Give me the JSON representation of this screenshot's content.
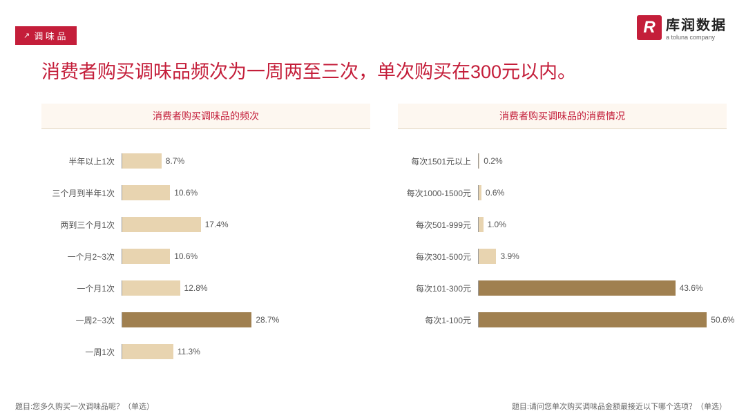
{
  "category_tab": "调 味 品",
  "logo": {
    "icon_letter": "R",
    "main": "库润数据",
    "sub": "a toluna company"
  },
  "title": "消费者购买调味品频次为一周两至三次，单次购买在300元以内。",
  "chart_left": {
    "type": "bar-horizontal",
    "header": "消费者购买调味品的频次",
    "max_scale": 55,
    "bar_color_default": "#e8d4b0",
    "bar_color_highlight": "#a08050",
    "text_color": "#555555",
    "label_fontsize": 12,
    "value_fontsize": 12,
    "background": "#ffffff",
    "rows": [
      {
        "label": "半年以上1次",
        "value": 8.7,
        "display": "8.7%",
        "highlight": false
      },
      {
        "label": "三个月到半年1次",
        "value": 10.6,
        "display": "10.6%",
        "highlight": false
      },
      {
        "label": "两到三个月1次",
        "value": 17.4,
        "display": "17.4%",
        "highlight": false
      },
      {
        "label": "一个月2~3次",
        "value": 10.6,
        "display": "10.6%",
        "highlight": false
      },
      {
        "label": "一个月1次",
        "value": 12.8,
        "display": "12.8%",
        "highlight": false
      },
      {
        "label": "一周2~3次",
        "value": 28.7,
        "display": "28.7%",
        "highlight": true
      },
      {
        "label": "一周1次",
        "value": 11.3,
        "display": "11.3%",
        "highlight": false
      }
    ]
  },
  "chart_right": {
    "type": "bar-horizontal",
    "header": "消费者购买调味品的消费情况",
    "max_scale": 55,
    "bar_color_default": "#e8d4b0",
    "bar_color_highlight": "#a08050",
    "text_color": "#555555",
    "label_fontsize": 12,
    "value_fontsize": 12,
    "background": "#ffffff",
    "rows": [
      {
        "label": "每次1501元以上",
        "value": 0.2,
        "display": "0.2%",
        "highlight": false
      },
      {
        "label": "每次1000-1500元",
        "value": 0.6,
        "display": "0.6%",
        "highlight": false
      },
      {
        "label": "每次501-999元",
        "value": 1.0,
        "display": "1.0%",
        "highlight": false
      },
      {
        "label": "每次301-500元",
        "value": 3.9,
        "display": "3.9%",
        "highlight": false
      },
      {
        "label": "每次101-300元",
        "value": 43.6,
        "display": "43.6%",
        "highlight": true
      },
      {
        "label": "每次1-100元",
        "value": 50.6,
        "display": "50.6%",
        "highlight": true
      }
    ]
  },
  "footer_left": "题目:您多久购买一次调味品呢？（单选）",
  "footer_right": "题目:请问您单次购买调味品金额最接近以下哪个选项？（单选）",
  "colors": {
    "brand_red": "#c41e3a",
    "header_bg": "#fdf7f0",
    "header_border": "#e0d4c0",
    "axis": "#999999"
  }
}
